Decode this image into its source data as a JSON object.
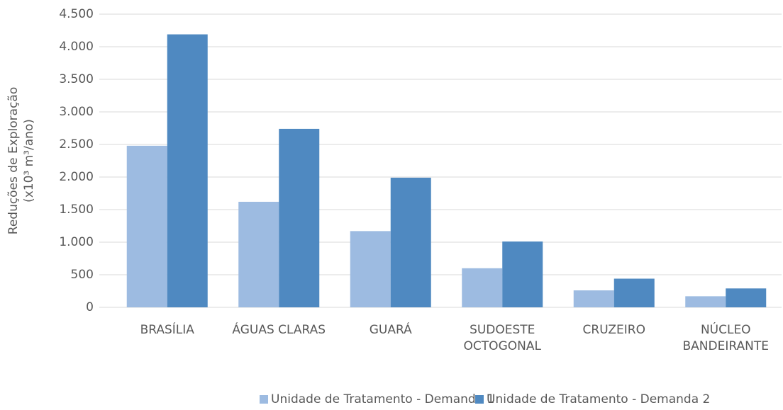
{
  "chart_data": {
    "type": "bar",
    "ylabel": [
      "Reduções de Exploração",
      "(x10³ m³/ano)"
    ],
    "categories": [
      "BRASÍLIA",
      "ÁGUAS CLARAS",
      "GUARÁ",
      "SUDOESTE OCTOGONAL",
      "CRUZEIRO",
      "NÚCLEO BANDEIRANTE"
    ],
    "series": [
      {
        "name": "Unidade de Tratamento - Demanda 1",
        "color": "#9dbbe1",
        "values": [
          2480,
          1620,
          1170,
          600,
          260,
          170
        ]
      },
      {
        "name": "Unidade de Tratamento - Demanda 2",
        "color": "#4f89c1",
        "values": [
          4190,
          2740,
          1990,
          1010,
          440,
          290
        ]
      }
    ],
    "ylim": [
      0,
      4500
    ],
    "yticks": [
      0,
      500,
      {
        "value": 1000,
        "label": "1.000"
      },
      {
        "value": 1500,
        "label": "1.500"
      },
      {
        "value": 2000,
        "label": "2.000"
      },
      {
        "value": 2500,
        "label": "2.500"
      },
      {
        "value": 3000,
        "label": "3.000"
      },
      {
        "value": 3500,
        "label": "3.500"
      },
      {
        "value": 4000,
        "label": "4.000"
      },
      {
        "value": 4500,
        "label": "4.500"
      }
    ],
    "grid": true,
    "legend": "bottom"
  }
}
